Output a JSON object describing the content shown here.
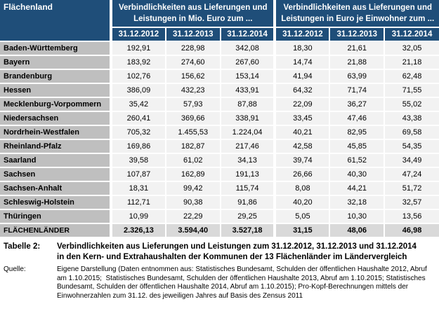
{
  "table": {
    "corner_header": "Flächenland",
    "group_headers": [
      "Verbindlichkeiten aus Lieferungen und Leistungen in Mio. Euro zum ...",
      "Verbindlichkeiten aus Lieferungen und Leistungen in Euro je Einwohner zum ..."
    ],
    "date_headers": [
      "31.12.2012",
      "31.12.2013",
      "31.12.2014",
      "31.12.2012",
      "31.12.2013",
      "31.12.2014"
    ],
    "rows": [
      {
        "label": "Baden-Württemberg",
        "values": [
          "192,91",
          "228,98",
          "342,08",
          "18,30",
          "21,61",
          "32,05"
        ]
      },
      {
        "label": "Bayern",
        "values": [
          "183,92",
          "274,60",
          "267,60",
          "14,74",
          "21,88",
          "21,18"
        ]
      },
      {
        "label": "Brandenburg",
        "values": [
          "102,76",
          "156,62",
          "153,14",
          "41,94",
          "63,99",
          "62,48"
        ]
      },
      {
        "label": "Hessen",
        "values": [
          "386,09",
          "432,23",
          "433,91",
          "64,32",
          "71,74",
          "71,55"
        ]
      },
      {
        "label": "Mecklenburg-Vorpommern",
        "values": [
          "35,42",
          "57,93",
          "87,88",
          "22,09",
          "36,27",
          "55,02"
        ]
      },
      {
        "label": "Niedersachsen",
        "values": [
          "260,41",
          "369,66",
          "338,91",
          "33,45",
          "47,46",
          "43,38"
        ]
      },
      {
        "label": "Nordrhein-Westfalen",
        "values": [
          "705,32",
          "1.455,53",
          "1.224,04",
          "40,21",
          "82,95",
          "69,58"
        ]
      },
      {
        "label": "Rheinland-Pfalz",
        "values": [
          "169,86",
          "182,87",
          "217,46",
          "42,58",
          "45,85",
          "54,35"
        ]
      },
      {
        "label": "Saarland",
        "values": [
          "39,58",
          "61,02",
          "34,13",
          "39,74",
          "61,52",
          "34,49"
        ]
      },
      {
        "label": "Sachsen",
        "values": [
          "107,87",
          "162,89",
          "191,13",
          "26,66",
          "40,30",
          "47,24"
        ]
      },
      {
        "label": "Sachsen-Anhalt",
        "values": [
          "18,31",
          "99,42",
          "115,74",
          "8,08",
          "44,21",
          "51,72"
        ]
      },
      {
        "label": "Schleswig-Holstein",
        "values": [
          "112,71",
          "90,38",
          "91,86",
          "40,20",
          "32,18",
          "32,57"
        ]
      },
      {
        "label": "Thüringen",
        "values": [
          "10,99",
          "22,29",
          "29,25",
          "5,05",
          "10,30",
          "13,56"
        ]
      }
    ],
    "total_row": {
      "label": "FLÄCHENLÄNDER",
      "values": [
        "2.326,13",
        "3.594,40",
        "3.527,18",
        "31,15",
        "48,06",
        "46,98"
      ]
    }
  },
  "caption": {
    "label": "Tabelle 2:",
    "text": "Verbindlichkeiten aus Lieferungen und Leistungen zum 31.12.2012, 31.12.2013 und 31.12.2014 in den Kern- und Extrahaushalten der Kommunen der 13 Flächenländer im Ländervergleich"
  },
  "source": {
    "label": "Quelle:",
    "text": "Eigene Darstellung (Daten entnommen aus: Statistisches Bundesamt, Schulden der öffentlichen Haushalte 2012, Abruf am 1.10.2015;  Statistisches Bundesamt, Schulden der öffentlichen Haushalte 2013, Abruf am 1.10.2015; Statistisches Bundesamt, Schulden der öffentlichen Haushalte 2014, Abruf am 1.10.2015); Pro-Kopf-Berechnungen mittels der Einwohnerzahlen zum 31.12. des jeweiligen Jahres auf Basis des Zensus 2011"
  },
  "colors": {
    "header_bg": "#1F4E79",
    "header_text": "#FFFFFF",
    "label_column_bg": "#BFBFBF",
    "cell_bg": "#F2F2F2",
    "total_cell_bg": "#D9D9D9",
    "separator": "#FFFFFF"
  }
}
